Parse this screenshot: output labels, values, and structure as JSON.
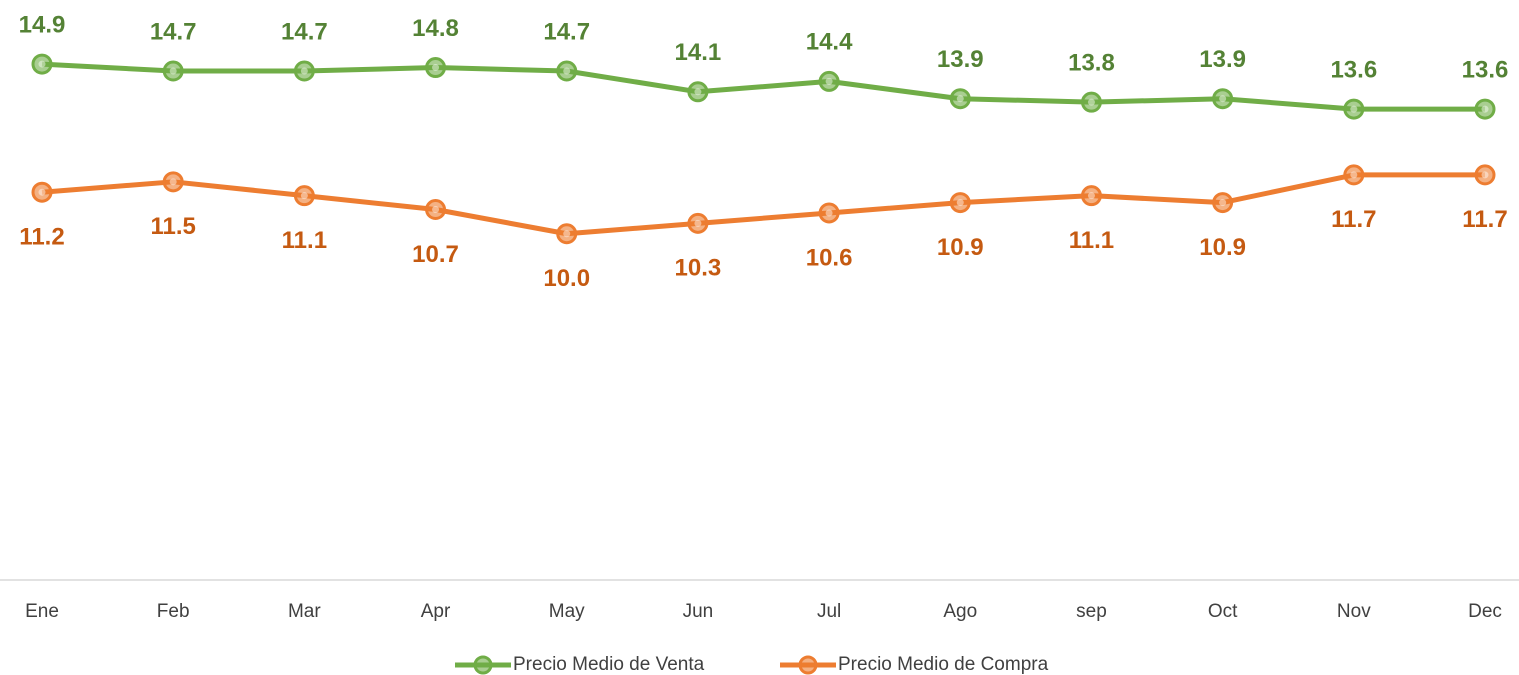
{
  "chart_data": {
    "type": "line",
    "categories": [
      "Ene",
      "Feb",
      "Mar",
      "Apr",
      "May",
      "Jun",
      "Jul",
      "Ago",
      "sep",
      "Oct",
      "Nov",
      "Dec"
    ],
    "series": [
      {
        "name": "Precio Medio de Venta",
        "color": "#70ad47",
        "label_color": "#548235",
        "values": [
          14.9,
          14.7,
          14.7,
          14.8,
          14.7,
          14.1,
          14.4,
          13.9,
          13.8,
          13.9,
          13.6,
          13.6
        ],
        "value_labels": [
          "14.9",
          "14.7",
          "14.7",
          "14.8",
          "14.7",
          "14.1",
          "14.4",
          "13.9",
          "13.8",
          "13.9",
          "13.6",
          "13.6"
        ]
      },
      {
        "name": "Precio Medio de Compra",
        "color": "#ed7d31",
        "label_color": "#c55a11",
        "values": [
          11.2,
          11.5,
          11.1,
          10.7,
          10.0,
          10.3,
          10.6,
          10.9,
          11.1,
          10.9,
          11.7,
          11.7
        ],
        "value_labels": [
          "11.2",
          "11.5",
          "11.1",
          "10.7",
          "10.0",
          "10.3",
          "10.6",
          "10.9",
          "11.1",
          "10.9",
          "11.7",
          "11.7"
        ]
      }
    ],
    "ylim": [
      0,
      16
    ],
    "legend": "bottom"
  }
}
